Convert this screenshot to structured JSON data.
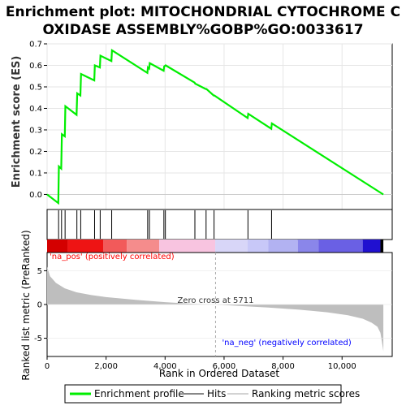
{
  "chart_data": {
    "type": "line",
    "title_line1": "Enrichment plot: MITOCHONDRIAL CYTOCHROME C",
    "title_line2": "OXIDASE ASSEMBLY%GOBP%GO:0033617",
    "es_ylabel": "Enrichment score (ES)",
    "rank_ylabel": "Ranked list metric (PreRanked)",
    "xlabel": "Rank in Ordered Dataset",
    "xlim": [
      0,
      11700
    ],
    "es_ylim": [
      -0.07,
      0.7
    ],
    "rank_ylim": [
      -7.7,
      7.7
    ],
    "x_ticks": [
      0,
      2000,
      4000,
      6000,
      8000,
      10000
    ],
    "x_tick_labels": [
      "0",
      "2,000",
      "4,000",
      "6,000",
      "8,000",
      "10,000"
    ],
    "es_ticks": [
      0.0,
      0.1,
      0.2,
      0.3,
      0.4,
      0.5,
      0.6,
      0.7
    ],
    "es_tick_labels": [
      "0.0",
      "0.1",
      "0.2",
      "0.3",
      "0.4",
      "0.5",
      "0.6",
      "0.7"
    ],
    "rank_ticks": [
      5,
      0,
      -5
    ],
    "rank_tick_labels": [
      "5",
      "0",
      "-5"
    ],
    "total_rank": 11400,
    "enrichment_profile": {
      "name": "Enrichment profile",
      "color": "#00ee00",
      "x": [
        0,
        380,
        400,
        480,
        500,
        600,
        620,
        1000,
        1020,
        1130,
        1150,
        1600,
        1620,
        1790,
        1810,
        2180,
        2200,
        3400,
        3420,
        3460,
        3480,
        3950,
        3970,
        4000,
        4020,
        5000,
        5020,
        5380,
        5400,
        5650,
        5670,
        6800,
        6820,
        7600,
        7620,
        11400
      ],
      "y": [
        0.0,
        -0.04,
        0.13,
        0.12,
        0.28,
        0.27,
        0.41,
        0.37,
        0.47,
        0.46,
        0.56,
        0.53,
        0.6,
        0.59,
        0.645,
        0.62,
        0.67,
        0.565,
        0.59,
        0.585,
        0.61,
        0.575,
        0.595,
        0.598,
        0.6,
        0.52,
        0.515,
        0.49,
        0.49,
        0.46,
        0.46,
        0.355,
        0.375,
        0.305,
        0.33,
        0.0
      ]
    },
    "hits": {
      "name": "Hits",
      "color": "#000000",
      "positions": [
        390,
        490,
        610,
        1010,
        1140,
        1610,
        1800,
        2190,
        3410,
        3470,
        3960,
        4010,
        5010,
        5390,
        5660,
        6810,
        7610
      ]
    },
    "ranking_metric": {
      "name": "Ranking metric scores",
      "fill_color": "#bebebe",
      "x": [
        0,
        100,
        300,
        600,
        1000,
        1500,
        2000,
        3000,
        4000,
        5000,
        5711,
        6500,
        7500,
        8500,
        9500,
        10200,
        10700,
        11000,
        11200,
        11300,
        11350,
        11400
      ],
      "y": [
        5.6,
        4.2,
        3.2,
        2.4,
        1.8,
        1.4,
        1.1,
        0.7,
        0.35,
        0.1,
        0.0,
        -0.2,
        -0.45,
        -0.75,
        -1.15,
        -1.6,
        -2.1,
        -2.7,
        -3.3,
        -4.2,
        -5.5,
        -6.9
      ]
    },
    "zero_cross": {
      "rank": 5711,
      "label": "Zero cross at 5711"
    },
    "pos_label": "'na_pos' (positively correlated)",
    "neg_label": "'na_neg' (negatively correlated)",
    "pos_label_color": "#ff0000",
    "neg_label_color": "#0000ff",
    "heat_bands": [
      {
        "from": 0,
        "to": 700,
        "color": "#d40000"
      },
      {
        "from": 700,
        "to": 1900,
        "color": "#ee1414"
      },
      {
        "from": 1900,
        "to": 2700,
        "color": "#f25a5a"
      },
      {
        "from": 2700,
        "to": 3800,
        "color": "#f58c8c"
      },
      {
        "from": 3800,
        "to": 5700,
        "color": "#f8c4e0"
      },
      {
        "from": 5700,
        "to": 6800,
        "color": "#d8d6f8"
      },
      {
        "from": 6800,
        "to": 7500,
        "color": "#c8c8f8"
      },
      {
        "from": 7500,
        "to": 8500,
        "color": "#b2b2f2"
      },
      {
        "from": 8500,
        "to": 9200,
        "color": "#8a86ea"
      },
      {
        "from": 9200,
        "to": 10700,
        "color": "#6a60e4"
      },
      {
        "from": 10700,
        "to": 11300,
        "color": "#2010d0"
      },
      {
        "from": 11300,
        "to": 11400,
        "color": "#000000"
      }
    ],
    "legend": [
      {
        "label": "Enrichment profile",
        "color": "#00ee00",
        "style": "thick"
      },
      {
        "label": "Hits",
        "color": "#888888",
        "style": "thin"
      },
      {
        "label": "Ranking metric scores",
        "color": "#d3d3d3",
        "style": "thin"
      }
    ]
  }
}
